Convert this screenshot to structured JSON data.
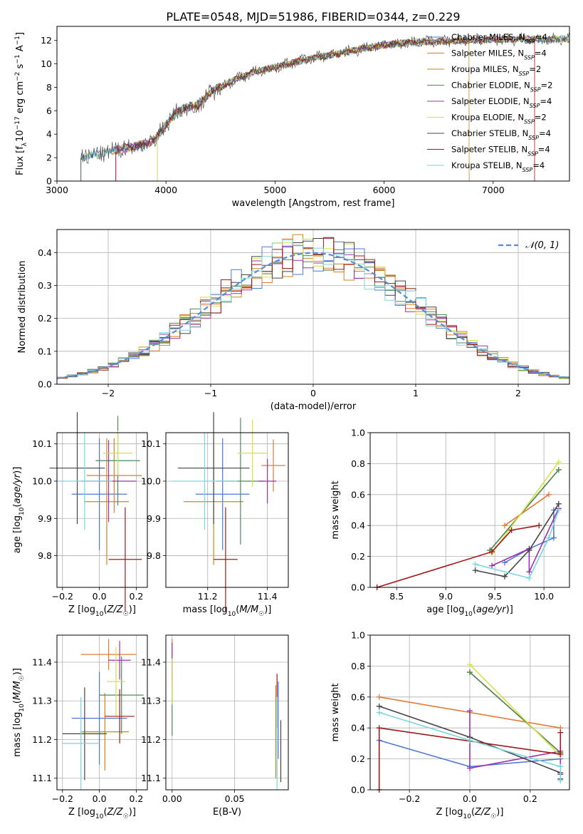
{
  "title": "PLATE=0548, MJD=51986, FIBERID=0344, z=0.229",
  "models": [
    {
      "name": "Chabrier MILES, N",
      "nssp": "=4",
      "color": "#4c78d8"
    },
    {
      "name": "Salpeter MILES, N",
      "nssp": "=4",
      "color": "#e07b39"
    },
    {
      "name": "Kroupa MILES, N",
      "nssp": "=2",
      "color": "#c9891a"
    },
    {
      "name": "Chabrier ELODIE, N",
      "nssp": "=2",
      "color": "#4f8a5a"
    },
    {
      "name": "Salpeter ELODIE, N",
      "nssp": "=4",
      "color": "#9b30b0"
    },
    {
      "name": "Kroupa ELODIE, N",
      "nssp": "=2",
      "color": "#d6e04a"
    },
    {
      "name": "Chabrier STELIB, N",
      "nssp": "=4",
      "color": "#444444"
    },
    {
      "name": "Salpeter STELIB, N",
      "nssp": "=4",
      "color": "#a01818"
    },
    {
      "name": "Kroupa STELIB, N",
      "nssp": "=4",
      "color": "#78d6de"
    }
  ],
  "legend_sub": "SSP",
  "legend_gauss": "𝒩(0, 1)",
  "chart_data": [
    {
      "id": "spectrum",
      "type": "line",
      "xlabel": "wavelength [Angstrom, rest frame]",
      "ylabel": "Flux [f_λ 10^-17 erg cm^-2 s^-1 A^-1]",
      "xlim": [
        3000,
        7700
      ],
      "ylim": [
        0,
        13.2
      ],
      "xticks": [
        3000,
        4000,
        5000,
        6000,
        7000
      ],
      "yticks": [
        0,
        2,
        4,
        6,
        8,
        10,
        12
      ],
      "continuum_x": [
        3220,
        3300,
        3400,
        3600,
        3800,
        3900,
        4000,
        4100,
        4200,
        4300,
        4400,
        4600,
        4800,
        5000,
        5200,
        5400,
        5600,
        5800,
        6000,
        6200,
        6400,
        6600,
        6800,
        7000,
        7200,
        7400
      ],
      "continuum_y": [
        2.0,
        2.2,
        2.3,
        2.8,
        3.1,
        3.6,
        4.8,
        5.9,
        6.3,
        6.5,
        7.5,
        8.5,
        9.3,
        9.7,
        10.2,
        10.6,
        10.9,
        11.3,
        11.6,
        11.8,
        11.9,
        11.9,
        12.0,
        12.1,
        12.1,
        12.1
      ]
    },
    {
      "id": "residuals",
      "type": "histogram",
      "xlabel": "(data-model)/error",
      "ylabel": "Normed distribution",
      "xlim": [
        -2.5,
        2.5
      ],
      "ylim": [
        0,
        0.47
      ],
      "xticks": [
        -2,
        -1,
        0,
        1,
        2
      ],
      "yticks": [
        0.0,
        0.1,
        0.2,
        0.3,
        0.4
      ],
      "gaussian": {
        "mean": 0,
        "sigma": 1
      }
    },
    {
      "id": "age-vs-Z",
      "type": "errorbar",
      "xlabel": "Z [log10(Z/Z☉)]",
      "ylabel": "age [log10(age/yr)]",
      "xlim": [
        -0.23,
        0.26
      ],
      "ylim": [
        9.715,
        10.13
      ],
      "xticks": [
        -0.2,
        0.0,
        0.2
      ],
      "yticks": [
        9.8,
        9.9,
        10.0,
        10.1
      ],
      "points": [
        {
          "series": 0,
          "x": 0.0,
          "y": 9.965,
          "xerr": 0.15,
          "yerr": 0.15
        },
        {
          "series": 1,
          "x": 0.08,
          "y": 10.015,
          "xerr": 0.15,
          "yerr": 0.1
        },
        {
          "series": 2,
          "x": 0.04,
          "y": 9.945,
          "xerr": 0.12,
          "yerr": 0.17
        },
        {
          "series": 3,
          "x": 0.1,
          "y": 10.055,
          "xerr": 0.12,
          "yerr": 0.12
        },
        {
          "series": 4,
          "x": 0.05,
          "y": 10.0,
          "xerr": 0.15,
          "yerr": 0.11
        },
        {
          "series": 5,
          "x": 0.1,
          "y": 10.075,
          "xerr": 0.08,
          "yerr": 0.06
        },
        {
          "series": 6,
          "x": -0.12,
          "y": 10.035,
          "xerr": 0.15,
          "yerr": 0.15
        },
        {
          "series": 7,
          "x": 0.14,
          "y": 9.79,
          "xerr": 0.09,
          "yerr": 0.14
        },
        {
          "series": 8,
          "x": -0.08,
          "y": 10.0,
          "xerr": 0.15,
          "yerr": 0.13
        }
      ]
    },
    {
      "id": "age-vs-mass",
      "type": "errorbar",
      "xlabel": "mass [log10(M/M☉)]",
      "ylabel": "",
      "xlim": [
        11.06,
        11.47
      ],
      "ylim": [
        9.715,
        10.13
      ],
      "xticks": [
        11.2,
        11.4
      ],
      "yticks": [
        9.8,
        9.9,
        10.0,
        10.1
      ],
      "points": [
        {
          "series": 0,
          "x": 11.25,
          "y": 9.965,
          "xerr": 0.09,
          "yerr": 0.15
        },
        {
          "series": 1,
          "x": 11.42,
          "y": 10.042,
          "xerr": 0.04,
          "yerr": 0.07
        },
        {
          "series": 2,
          "x": 11.22,
          "y": 9.945,
          "xerr": 0.1,
          "yerr": 0.17
        },
        {
          "series": 3,
          "x": 11.31,
          "y": 10.0,
          "xerr": 0.08,
          "yerr": 0.17
        },
        {
          "series": 4,
          "x": 11.4,
          "y": 10.0,
          "xerr": 0.03,
          "yerr": 0.06
        },
        {
          "series": 5,
          "x": 11.35,
          "y": 10.075,
          "xerr": 0.05,
          "yerr": 0.09
        },
        {
          "series": 6,
          "x": 11.22,
          "y": 10.035,
          "xerr": 0.12,
          "yerr": 0.15
        },
        {
          "series": 7,
          "x": 11.26,
          "y": 9.79,
          "xerr": 0.04,
          "yerr": 0.14
        },
        {
          "series": 8,
          "x": 11.19,
          "y": 10.0,
          "xerr": 0.11,
          "yerr": 0.13
        }
      ]
    },
    {
      "id": "weight-vs-age",
      "type": "line",
      "xlabel": "age [log10(age/yr)]",
      "ylabel": "mass weight",
      "xlim": [
        8.23,
        10.26
      ],
      "ylim": [
        0,
        1.0
      ],
      "xticks": [
        8.5,
        9.0,
        9.5,
        10.0
      ],
      "yticks": [
        0.0,
        0.2,
        0.4,
        0.6,
        0.8,
        1.0
      ],
      "series": [
        {
          "series": 0,
          "x": [
            9.6,
            9.85,
            10.1,
            10.1
          ],
          "y": [
            0.16,
            0.25,
            0.32,
            0.5
          ]
        },
        {
          "series": 1,
          "x": [
            9.6,
            10.05
          ],
          "y": [
            0.4,
            0.6
          ]
        },
        {
          "series": 2,
          "x": [
            9.45,
            10.15
          ],
          "y": [
            0.24,
            0.76
          ]
        },
        {
          "series": 3,
          "x": [
            9.45,
            10.15
          ],
          "y": [
            0.24,
            0.76
          ]
        },
        {
          "series": 4,
          "x": [
            9.47,
            9.85,
            9.85,
            10.15
          ],
          "y": [
            0.14,
            0.25,
            0.1,
            0.51
          ]
        },
        {
          "series": 5,
          "x": [
            9.47,
            10.15
          ],
          "y": [
            0.22,
            0.81
          ]
        },
        {
          "series": 6,
          "x": [
            9.3,
            9.6,
            9.85,
            10.15
          ],
          "y": [
            0.11,
            0.07,
            0.24,
            0.54
          ]
        },
        {
          "series": 7,
          "x": [
            8.3,
            9.47,
            9.67,
            9.95
          ],
          "y": [
            0.0,
            0.23,
            0.37,
            0.4
          ]
        },
        {
          "series": 8,
          "x": [
            9.3,
            9.85,
            10.05,
            10.15
          ],
          "y": [
            0.15,
            0.06,
            0.32,
            0.5
          ]
        }
      ]
    },
    {
      "id": "mass-vs-Z",
      "type": "errorbar",
      "xlabel": "Z [log10(Z/Z☉)]",
      "ylabel": "mass [log10(M/M☉)]",
      "xlim": [
        -0.23,
        0.26
      ],
      "ylim": [
        11.07,
        11.47
      ],
      "xticks": [
        -0.2,
        0.0,
        0.2
      ],
      "yticks": [
        11.1,
        11.2,
        11.3,
        11.4
      ],
      "points": [
        {
          "series": 0,
          "x": 0.0,
          "y": 11.255,
          "xerr": 0.15,
          "yerr": 0.12
        },
        {
          "series": 1,
          "x": 0.05,
          "y": 11.42,
          "xerr": 0.15,
          "yerr": 0.04
        },
        {
          "series": 2,
          "x": 0.03,
          "y": 11.22,
          "xerr": 0.13,
          "yerr": 0.1
        },
        {
          "series": 3,
          "x": 0.12,
          "y": 11.315,
          "xerr": 0.12,
          "yerr": 0.1
        },
        {
          "series": 4,
          "x": 0.11,
          "y": 11.405,
          "xerr": 0.06,
          "yerr": 0.05
        },
        {
          "series": 5,
          "x": 0.09,
          "y": 11.35,
          "xerr": 0.05,
          "yerr": 0.09
        },
        {
          "series": 6,
          "x": -0.08,
          "y": 11.215,
          "xerr": 0.12,
          "yerr": 0.12
        },
        {
          "series": 7,
          "x": 0.11,
          "y": 11.26,
          "xerr": 0.08,
          "yerr": 0.07
        },
        {
          "series": 8,
          "x": -0.1,
          "y": 11.19,
          "xerr": 0.1,
          "yerr": 0.12
        }
      ]
    },
    {
      "id": "mass-vs-EBV",
      "type": "errorbar",
      "xlabel": "E(B-V)",
      "ylabel": "",
      "xlim": [
        -0.005,
        0.093
      ],
      "ylim": [
        11.07,
        11.47
      ],
      "xticks": [
        0.0,
        0.05
      ],
      "yticks": [
        11.1,
        11.2,
        11.3,
        11.4
      ],
      "points": [
        {
          "series": 0,
          "x": 0.085,
          "y": 11.25,
          "xerr": 0.0,
          "yerr": 0.1
        },
        {
          "series": 1,
          "x": 0.0,
          "y": 11.42,
          "xerr": 0.0,
          "yerr": 0.04
        },
        {
          "series": 2,
          "x": 0.083,
          "y": 11.22,
          "xerr": 0.0,
          "yerr": 0.12
        },
        {
          "series": 3,
          "x": 0.0,
          "y": 11.3,
          "xerr": 0.0,
          "yerr": 0.09
        },
        {
          "series": 4,
          "x": 0.0,
          "y": 11.4,
          "xerr": 0.0,
          "yerr": 0.05
        },
        {
          "series": 5,
          "x": 0.0,
          "y": 11.35,
          "xerr": 0.0,
          "yerr": 0.06
        },
        {
          "series": 6,
          "x": 0.087,
          "y": 11.17,
          "xerr": 0.0,
          "yerr": 0.08
        },
        {
          "series": 7,
          "x": 0.084,
          "y": 11.3,
          "xerr": 0.0,
          "yerr": 0.07
        },
        {
          "series": 8,
          "x": 0.084,
          "y": 11.19,
          "xerr": 0.0,
          "yerr": 0.12
        }
      ]
    },
    {
      "id": "weight-vs-Z",
      "type": "line",
      "xlabel": "Z [log10(Z/Z☉)]",
      "ylabel": "mass weight",
      "xlim": [
        -0.33,
        0.33
      ],
      "ylim": [
        0,
        1.0
      ],
      "xticks": [
        -0.2,
        0.0,
        0.2
      ],
      "yticks": [
        0.0,
        0.2,
        0.4,
        0.6,
        0.8,
        1.0
      ],
      "series": [
        {
          "series": 0,
          "x": [
            -0.3,
            0.0,
            0.3
          ],
          "y": [
            0.32,
            0.15,
            0.2
          ]
        },
        {
          "series": 1,
          "x": [
            -0.3,
            0.3
          ],
          "y": [
            0.6,
            0.4
          ]
        },
        {
          "series": 2,
          "x": [
            0.0,
            0.3
          ],
          "y": [
            0.76,
            0.24
          ]
        },
        {
          "series": 3,
          "x": [
            0.0,
            0.3
          ],
          "y": [
            0.76,
            0.24
          ]
        },
        {
          "series": 4,
          "x": [
            0.0,
            0.0,
            0.3,
            0.3
          ],
          "y": [
            0.51,
            0.14,
            0.25,
            0.1
          ]
        },
        {
          "series": 5,
          "x": [
            0.0,
            0.3
          ],
          "y": [
            0.81,
            0.22
          ]
        },
        {
          "series": 6,
          "x": [
            -0.3,
            0.0,
            0.3,
            0.3
          ],
          "y": [
            0.54,
            0.34,
            0.11,
            0.07
          ]
        },
        {
          "series": 7,
          "x": [
            -0.3,
            -0.3,
            0.3,
            0.3
          ],
          "y": [
            0.0,
            0.4,
            0.23,
            0.37
          ]
        },
        {
          "series": 8,
          "x": [
            -0.3,
            0.0,
            0.3,
            0.3
          ],
          "y": [
            0.5,
            0.32,
            0.15,
            0.06
          ]
        }
      ]
    }
  ]
}
